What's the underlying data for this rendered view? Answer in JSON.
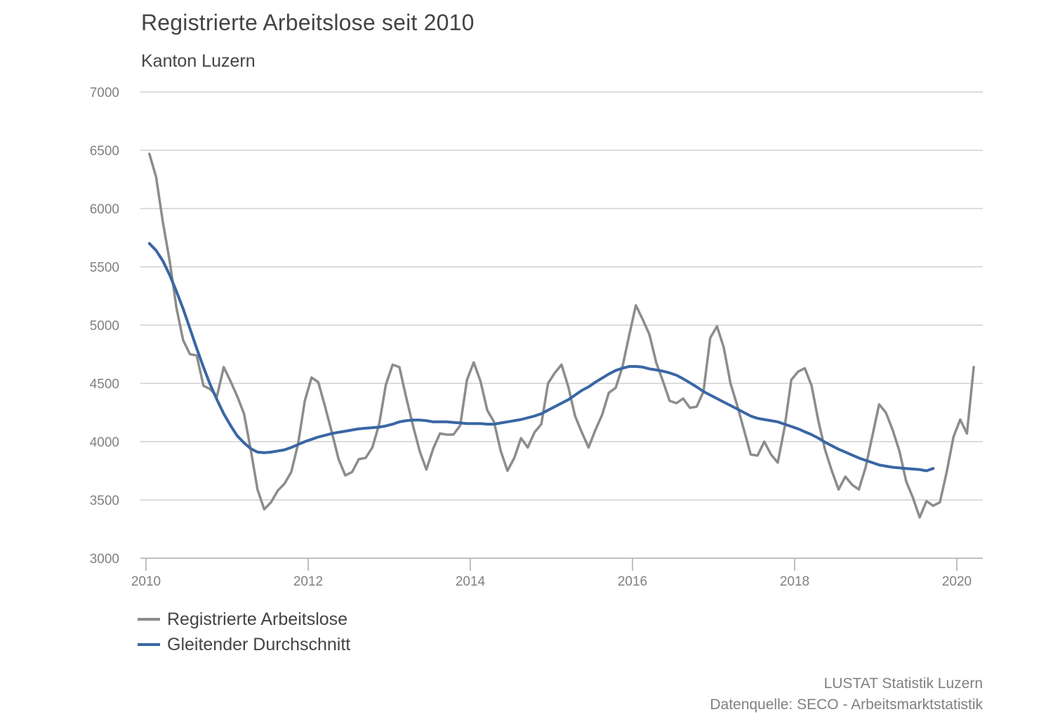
{
  "title": "Registrierte Arbeitslose seit 2010",
  "subtitle": "Kanton Luzern",
  "footer": {
    "source_org": "LUSTAT Statistik Luzern",
    "data_source": "Datenquelle: SECO - Arbeitsmarktstatistik"
  },
  "chart_data": {
    "type": "line",
    "title": "Registrierte Arbeitslose seit 2010",
    "subtitle": "Kanton Luzern",
    "xlabel": "",
    "ylabel": "",
    "x_start": "2010-01",
    "x_frequency": "monthly",
    "xlim": [
      2010,
      2020.3
    ],
    "ylim": [
      3000,
      7000
    ],
    "yticks": [
      3000,
      3500,
      4000,
      4500,
      5000,
      5500,
      6000,
      6500,
      7000
    ],
    "xticks": [
      2010,
      2012,
      2014,
      2016,
      2018,
      2020
    ],
    "grid": "horizontal",
    "legend_position": "bottom-left",
    "series": [
      {
        "name": "Registrierte Arbeitslose",
        "color": "#8c8c8c",
        "start": "2010-01",
        "end": "2020-03",
        "values": [
          6470,
          6270,
          5880,
          5550,
          5150,
          4870,
          4750,
          4740,
          4480,
          4450,
          4390,
          4640,
          4520,
          4390,
          4240,
          3930,
          3590,
          3420,
          3480,
          3580,
          3640,
          3740,
          3980,
          4350,
          4550,
          4510,
          4300,
          4080,
          3850,
          3710,
          3740,
          3850,
          3860,
          3950,
          4150,
          4490,
          4660,
          4640,
          4380,
          4140,
          3920,
          3760,
          3940,
          4070,
          4060,
          4060,
          4140,
          4530,
          4680,
          4520,
          4270,
          4170,
          3920,
          3750,
          3860,
          4030,
          3950,
          4080,
          4150,
          4500,
          4590,
          4660,
          4470,
          4220,
          4080,
          3950,
          4100,
          4230,
          4420,
          4460,
          4640,
          4910,
          5170,
          5050,
          4920,
          4680,
          4520,
          4350,
          4330,
          4370,
          4290,
          4300,
          4430,
          4890,
          4990,
          4810,
          4500,
          4310,
          4100,
          3890,
          3880,
          4000,
          3890,
          3820,
          4120,
          4530,
          4600,
          4630,
          4480,
          4180,
          3930,
          3750,
          3590,
          3700,
          3630,
          3590,
          3780,
          4050,
          4320,
          4250,
          4100,
          3920,
          3660,
          3520,
          3350,
          3490,
          3450,
          3480,
          3740,
          4040,
          4190,
          4070,
          4640
        ]
      },
      {
        "name": "Gleitender Durchschnitt",
        "color": "#3a66a4",
        "start": "2010-01",
        "end": "2019-09",
        "values": [
          5700,
          5640,
          5550,
          5430,
          5290,
          5140,
          4970,
          4800,
          4640,
          4490,
          4360,
          4240,
          4140,
          4050,
          3990,
          3940,
          3910,
          3905,
          3910,
          3920,
          3930,
          3950,
          3975,
          4000,
          4020,
          4040,
          4055,
          4070,
          4080,
          4090,
          4100,
          4110,
          4115,
          4120,
          4125,
          4135,
          4150,
          4170,
          4180,
          4185,
          4185,
          4180,
          4170,
          4170,
          4170,
          4165,
          4160,
          4155,
          4155,
          4155,
          4150,
          4150,
          4160,
          4170,
          4180,
          4190,
          4205,
          4220,
          4240,
          4270,
          4300,
          4330,
          4360,
          4400,
          4440,
          4470,
          4510,
          4545,
          4580,
          4610,
          4630,
          4645,
          4645,
          4640,
          4625,
          4615,
          4605,
          4590,
          4570,
          4540,
          4505,
          4470,
          4430,
          4400,
          4370,
          4340,
          4310,
          4280,
          4250,
          4220,
          4200,
          4190,
          4180,
          4170,
          4150,
          4130,
          4110,
          4085,
          4060,
          4030,
          3995,
          3965,
          3935,
          3910,
          3885,
          3860,
          3840,
          3820,
          3800,
          3790,
          3780,
          3775,
          3770,
          3765,
          3760,
          3750,
          3770
        ]
      }
    ]
  }
}
